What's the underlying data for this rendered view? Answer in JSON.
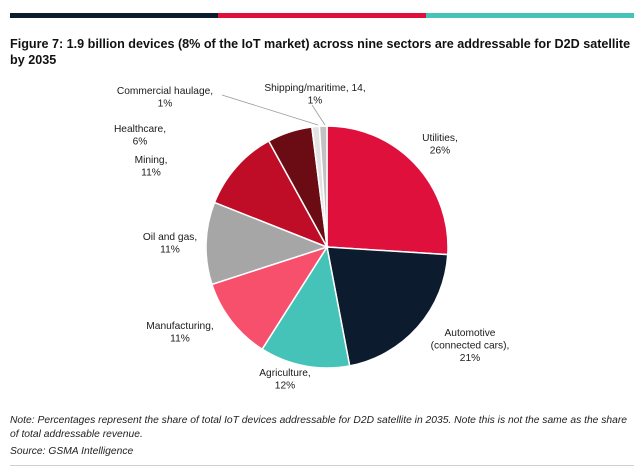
{
  "header": {
    "title": "Figure 7: 1.9 billion devices (8% of the IoT market) across nine sectors are addressable for D2D satellite by 2035",
    "bar_colors": [
      "#0d1b2e",
      "#e0103d",
      "#45c3b8"
    ]
  },
  "chart_data": {
    "type": "pie",
    "title": "Figure 7: 1.9 billion devices (8% of the IoT market) across nine sectors are addressable for D2D satellite by 2035",
    "unit": "%",
    "slices": [
      {
        "name": "Utilities",
        "value": 26,
        "color": "#e0103d",
        "label_lines": [
          "Utilities,",
          "26%"
        ]
      },
      {
        "name": "Automotive (connected cars)",
        "value": 21,
        "color": "#0d1b2e",
        "label_lines": [
          "Automotive",
          "(connected cars),",
          "21%"
        ]
      },
      {
        "name": "Agriculture",
        "value": 12,
        "color": "#45c3b8",
        "label_lines": [
          "Agriculture,",
          "12%"
        ]
      },
      {
        "name": "Manufacturing",
        "value": 11,
        "color": "#f7506d",
        "label_lines": [
          "Manufacturing,",
          "11%"
        ]
      },
      {
        "name": "Oil and gas",
        "value": 11,
        "color": "#a6a6a6",
        "label_lines": [
          "Oil and gas,",
          "11%"
        ]
      },
      {
        "name": "Mining",
        "value": 11,
        "color": "#c00d27",
        "label_lines": [
          "Mining,",
          "11%"
        ]
      },
      {
        "name": "Healthcare",
        "value": 6,
        "color": "#6b0b14",
        "label_lines": [
          "Healthcare,",
          "6%"
        ]
      },
      {
        "name": "Commercial haulage",
        "value": 1,
        "color": "#e3e3e3",
        "label_lines": [
          "Commercial haulage,",
          "1%"
        ]
      },
      {
        "name": "Shipping/maritime",
        "value": 1,
        "color": "#c2c2c2",
        "label_lines": [
          "Shipping/maritime, 14,",
          "1%"
        ]
      }
    ],
    "legend": "none"
  },
  "footer": {
    "note": "Note: Percentages represent the share of total IoT devices addressable for D2D satellite in 2035. Note this is not the same as the share of total addressable revenue.",
    "source": "Source: GSMA Intelligence"
  }
}
